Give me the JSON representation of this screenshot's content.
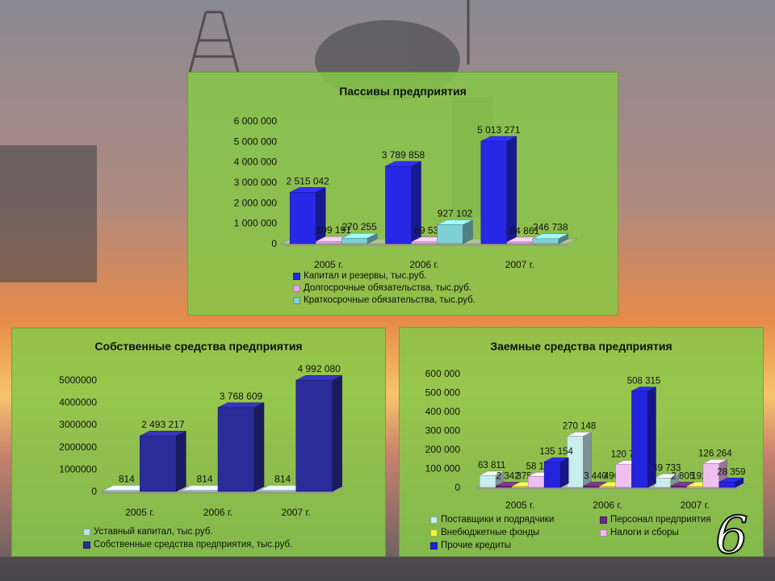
{
  "colors": {
    "capital": "#2727e6",
    "longterm": "#e2a8e8",
    "shortterm": "#7fd0d4",
    "ustavny": "#bfe4e6",
    "sobstv": "#2b2b9a",
    "suppliers": "#c9ecec",
    "personnel": "#6b2a7a",
    "funds": "#f2f04a",
    "taxes": "#f0bff0",
    "credits": "#2323dd"
  },
  "page_number": "6",
  "chart_data": [
    {
      "type": "bar",
      "title": "Пассивы предприятия",
      "categories": [
        "2005 г.",
        "2006 г.",
        "2007 г."
      ],
      "ylim": [
        0,
        6000000
      ],
      "yticks": [
        "0",
        "1 000 000",
        "2 000 000",
        "3 000 000",
        "4 000 000",
        "5 000 000",
        "6 000 000"
      ],
      "legend_position": "bottom",
      "series": [
        {
          "name": "Капитал и резервы, тыс.руб.",
          "color_key": "capital",
          "values": [
            2515042,
            3789858,
            5013271
          ],
          "labels": [
            "2 515 042",
            "3 789 858",
            "5 013 271"
          ]
        },
        {
          "name": "Долгосрочные обязательства, тыс.руб.",
          "color_key": "longterm",
          "values": [
            109191,
            89532,
            84861
          ],
          "labels": [
            "109 191",
            "89 532",
            "84 861"
          ]
        },
        {
          "name": "Краткосрочные обязательства, тыс.руб.",
          "color_key": "shortterm",
          "values": [
            270255,
            927102,
            246738
          ],
          "labels": [
            "270 255",
            "927 102",
            "246 738"
          ]
        }
      ]
    },
    {
      "type": "bar",
      "title": "Собственные средства предприятия",
      "categories": [
        "2005 г.",
        "2006 г.",
        "2007 г."
      ],
      "ylim": [
        0,
        5000000
      ],
      "yticks": [
        "0",
        "1000000",
        "2000000",
        "3000000",
        "4000000",
        "5000000"
      ],
      "legend_position": "bottom",
      "series": [
        {
          "name": "Уставный капитал, тыс.руб.",
          "color_key": "ustavny",
          "values": [
            814,
            814,
            814
          ],
          "labels": [
            "814",
            "814",
            "814"
          ]
        },
        {
          "name": "Собственные средства предприятия, тыс.руб.",
          "color_key": "sobstv",
          "values": [
            2493217,
            3768609,
            4992080
          ],
          "labels": [
            "2 493 217",
            "3 768 609",
            "4 992 080"
          ]
        }
      ]
    },
    {
      "type": "bar",
      "title": "Заемные средства предприятия",
      "categories": [
        "2005 г.",
        "2006 г.",
        "2007 г."
      ],
      "ylim": [
        0,
        600000
      ],
      "yticks": [
        "0",
        "100 000",
        "200 000",
        "300 000",
        "400 000",
        "500 000",
        "600 000"
      ],
      "legend_position": "bottom",
      "series": [
        {
          "name": "Поставщики и подрядчики",
          "color_key": "suppliers",
          "values": [
            63811,
            270148,
            49733
          ],
          "labels": [
            "63 811",
            "270 148",
            "49 733"
          ]
        },
        {
          "name": "Персонал предприятия",
          "color_key": "personnel",
          "values": [
            2342,
            3440,
            2805
          ],
          "labels": [
            "2 342",
            "3 440",
            "2 805"
          ]
        },
        {
          "name": "Внебюджетные фонды",
          "color_key": "funds",
          "values": [
            375,
            496,
            192
          ],
          "labels": [
            "375",
            "496",
            "192"
          ]
        },
        {
          "name": "Налоги и сборы",
          "color_key": "taxes",
          "values": [
            58177,
            120726,
            126264
          ],
          "labels": [
            "58 177",
            "120 726",
            "126 264"
          ]
        },
        {
          "name": "Прочие кредиты",
          "color_key": "credits",
          "values": [
            135154,
            508315,
            28359
          ],
          "labels": [
            "135 154",
            "508 315",
            "28 359"
          ]
        }
      ]
    }
  ]
}
